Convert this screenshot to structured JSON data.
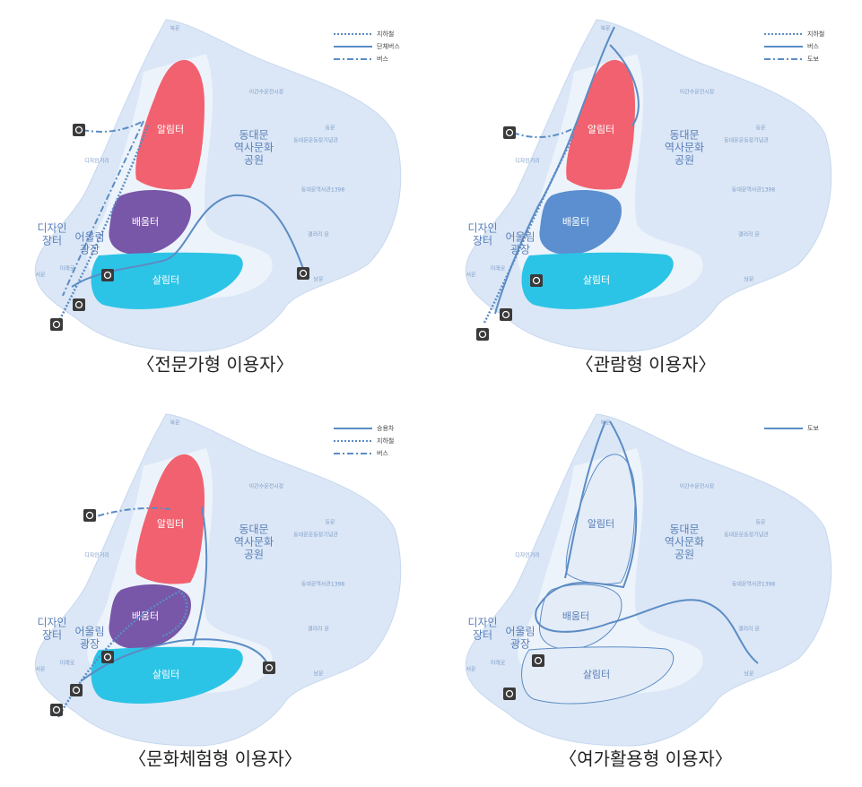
{
  "panels": [
    {
      "caption": "〈전문가형 이용자〉",
      "legend": [
        {
          "label": "지하철",
          "style": "dotted"
        },
        {
          "label": "단체버스",
          "style": "solid"
        },
        {
          "label": "버스",
          "style": "dashdot"
        }
      ],
      "zones": [
        {
          "label": "알림터",
          "color": "#f2616f"
        },
        {
          "label": "배움터",
          "color": "#7856a8"
        },
        {
          "label": "살림터",
          "color": "#2cc4e6"
        }
      ],
      "areas": [
        [
          "동대문",
          "역사문화",
          "공원"
        ],
        [
          "디자인",
          "장터"
        ],
        [
          "어울림",
          "광장"
        ]
      ],
      "places": [
        "북문",
        "동문",
        "남문",
        "서문",
        "디자인거리",
        "이간수문전시장",
        "동대문운동장기념관",
        "동대문역사관1398",
        "갤러리 문",
        "미래로"
      ]
    },
    {
      "caption": "〈관람형 이용자〉",
      "legend": [
        {
          "label": "지하철",
          "style": "dotted"
        },
        {
          "label": "버스",
          "style": "solid"
        },
        {
          "label": "도보",
          "style": "dashdot"
        }
      ],
      "zones": [
        {
          "label": "알림터",
          "color": "#f2616f"
        },
        {
          "label": "배움터",
          "color": "#5b8fcf"
        },
        {
          "label": "살림터",
          "color": "#2cc4e6"
        }
      ],
      "areas": [
        [
          "동대문",
          "역사문화",
          "공원"
        ],
        [
          "디자인",
          "장터"
        ],
        [
          "어울림",
          "광장"
        ]
      ],
      "places": [
        "북문",
        "동문",
        "남문",
        "서문",
        "디자인거리",
        "이간수문전시장",
        "동대문운동장기념관",
        "동대문역사관1398",
        "갤러리 문",
        "미래로"
      ]
    },
    {
      "caption": "〈문화체험형 이용자〉",
      "legend": [
        {
          "label": "승용차",
          "style": "solid"
        },
        {
          "label": "지하철",
          "style": "dotted"
        },
        {
          "label": "버스",
          "style": "dashdot"
        }
      ],
      "zones": [
        {
          "label": "알림터",
          "color": "#f2616f"
        },
        {
          "label": "배움터",
          "color": "#7856a8"
        },
        {
          "label": "살림터",
          "color": "#2cc4e6"
        }
      ],
      "areas": [
        [
          "동대문",
          "역사문화",
          "공원"
        ],
        [
          "디자인",
          "장터"
        ],
        [
          "어울림",
          "광장"
        ]
      ],
      "places": [
        "북문",
        "동문",
        "남문",
        "서문",
        "디자인거리",
        "이간수문전시장",
        "동대문운동장기념관",
        "동대문역사관1398",
        "갤러리 문",
        "미래로"
      ]
    },
    {
      "caption": "〈여가활용형 이용자〉",
      "legend": [
        {
          "label": "도보",
          "style": "solid"
        }
      ],
      "zones": [
        {
          "label": "알림터",
          "color": "#e4ecf8"
        },
        {
          "label": "배움터",
          "color": "#e4ecf8"
        },
        {
          "label": "살림터",
          "color": "#e4ecf8"
        }
      ],
      "areas": [
        [
          "동대문",
          "역사문화",
          "공원"
        ],
        [
          "디자인",
          "장터"
        ],
        [
          "어울림",
          "광장"
        ]
      ],
      "places": [
        "북문",
        "동문",
        "남문",
        "서문",
        "디자인거리",
        "이간수문전시장",
        "동대문운동장기념관",
        "동대문역사관1398",
        "갤러리 문",
        "미래로"
      ]
    }
  ]
}
